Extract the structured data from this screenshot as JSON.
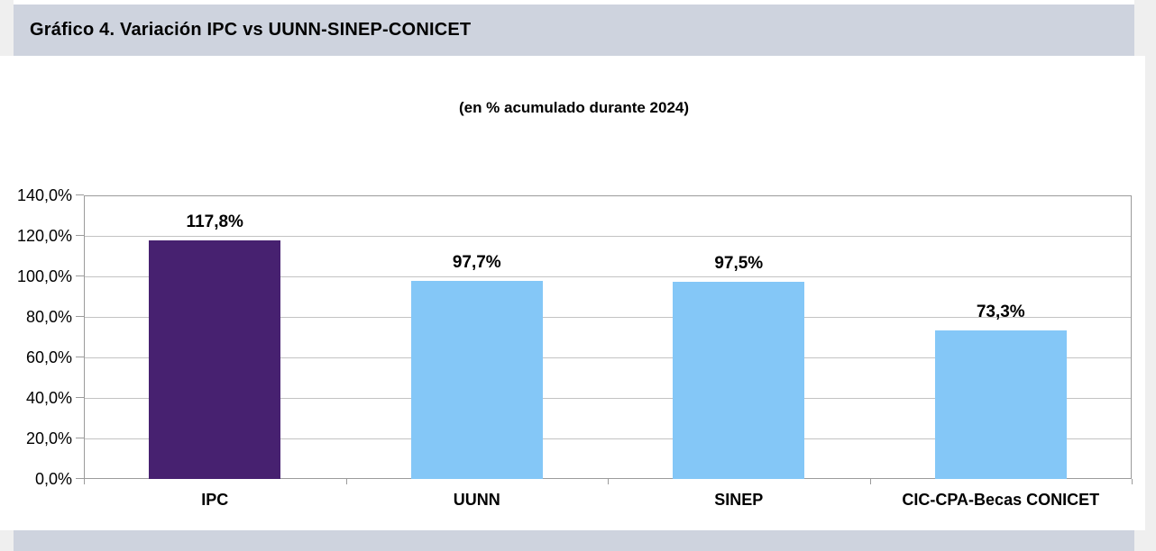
{
  "header": {
    "title": "Gráfico 4. Variación IPC vs UUNN-SINEP-CONICET"
  },
  "subtitle": "(en % acumulado durante 2024)",
  "chart_data": {
    "type": "bar",
    "title": "Gráfico 4. Variación IPC vs UUNN-SINEP-CONICET",
    "subtitle": "(en % acumulado durante 2024)",
    "categories": [
      "IPC",
      "UUNN",
      "SINEP",
      "CIC-CPA-Becas CONICET"
    ],
    "values": [
      117.8,
      97.7,
      97.5,
      73.3
    ],
    "value_labels": [
      "117,8%",
      "97,7%",
      "97,5%",
      "73,3%"
    ],
    "bar_colors": [
      "#472170",
      "#84c7f7",
      "#84c7f7",
      "#84c7f7"
    ],
    "xlabel": "",
    "ylabel": "",
    "ylim": [
      0,
      140
    ],
    "y_step": 20,
    "y_tick_labels": [
      "0,0%",
      "20,0%",
      "40,0%",
      "60,0%",
      "80,0%",
      "100,0%",
      "120,0%",
      "140,0%"
    ],
    "grid": "horizontal",
    "legend": "none"
  },
  "colors": {
    "band": "#ced3de",
    "page_margin": "#efefef",
    "bar_ipc": "#472170",
    "bar_blue": "#84c7f7",
    "gridline": "#c3c3c3",
    "plot_border": "#9b9b9b",
    "text": "#000000"
  }
}
